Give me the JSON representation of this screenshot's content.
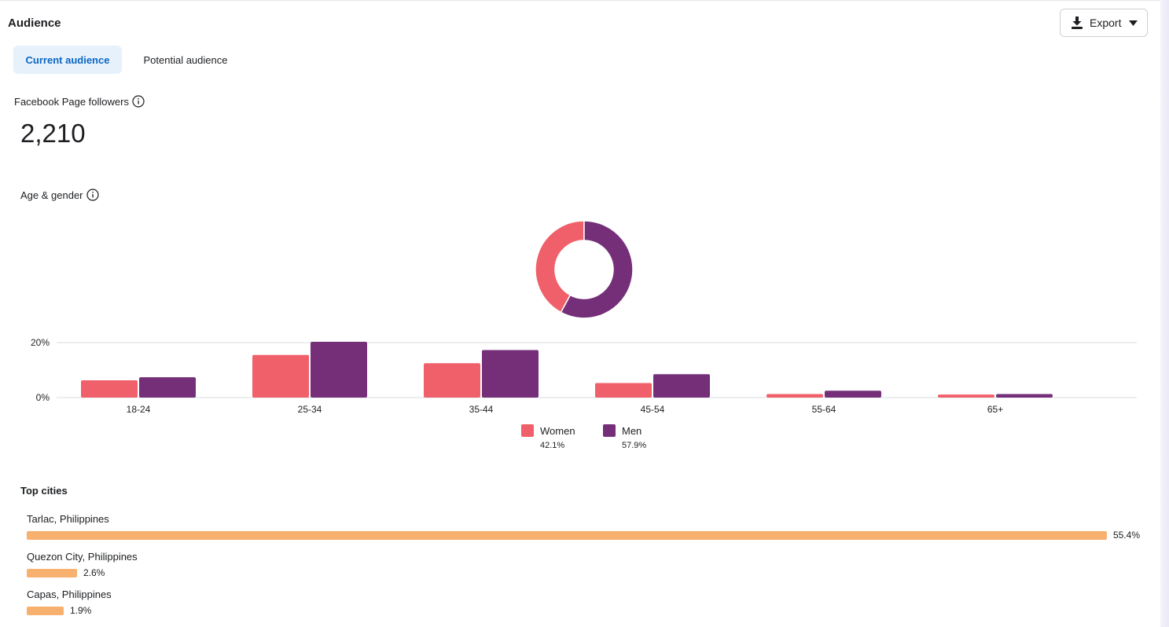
{
  "header": {
    "title": "Audience",
    "export_label": "Export"
  },
  "tabs": [
    {
      "label": "Current audience",
      "active": true
    },
    {
      "label": "Potential audience",
      "active": false
    }
  ],
  "followers": {
    "label": "Facebook Page followers",
    "value": "2,210"
  },
  "age_gender": {
    "label": "Age & gender",
    "legend": [
      {
        "name": "Women",
        "percent": "42.1%",
        "color": "#f0606a"
      },
      {
        "name": "Men",
        "percent": "57.9%",
        "color": "#742f78"
      }
    ]
  },
  "chart_data": [
    {
      "type": "pie",
      "labels": [
        "Women",
        "Men"
      ],
      "values": [
        42.1,
        57.9
      ],
      "colors": [
        "#f0606a",
        "#742f78"
      ],
      "donut": true
    },
    {
      "type": "bar",
      "categories": [
        "18-24",
        "25-34",
        "35-44",
        "45-54",
        "55-64",
        "65+"
      ],
      "series": [
        {
          "name": "Women",
          "values": [
            6.3,
            15.5,
            12.5,
            5.3,
            1.3,
            1.1
          ],
          "color": "#f0606a"
        },
        {
          "name": "Men",
          "values": [
            7.4,
            20.3,
            17.3,
            8.5,
            2.5,
            1.3
          ],
          "color": "#742f78"
        }
      ],
      "yticks": [
        "0%",
        "20%"
      ],
      "ylim": [
        0,
        20
      ],
      "grid": true
    }
  ],
  "top_cities": {
    "title": "Top cities",
    "items": [
      {
        "name": "Tarlac, Philippines",
        "percent": "55.4%",
        "value": 55.4
      },
      {
        "name": "Quezon City, Philippines",
        "percent": "2.6%",
        "value": 2.6
      },
      {
        "name": "Capas, Philippines",
        "percent": "1.9%",
        "value": 1.9
      }
    ],
    "bar_color": "#f8b06e"
  }
}
